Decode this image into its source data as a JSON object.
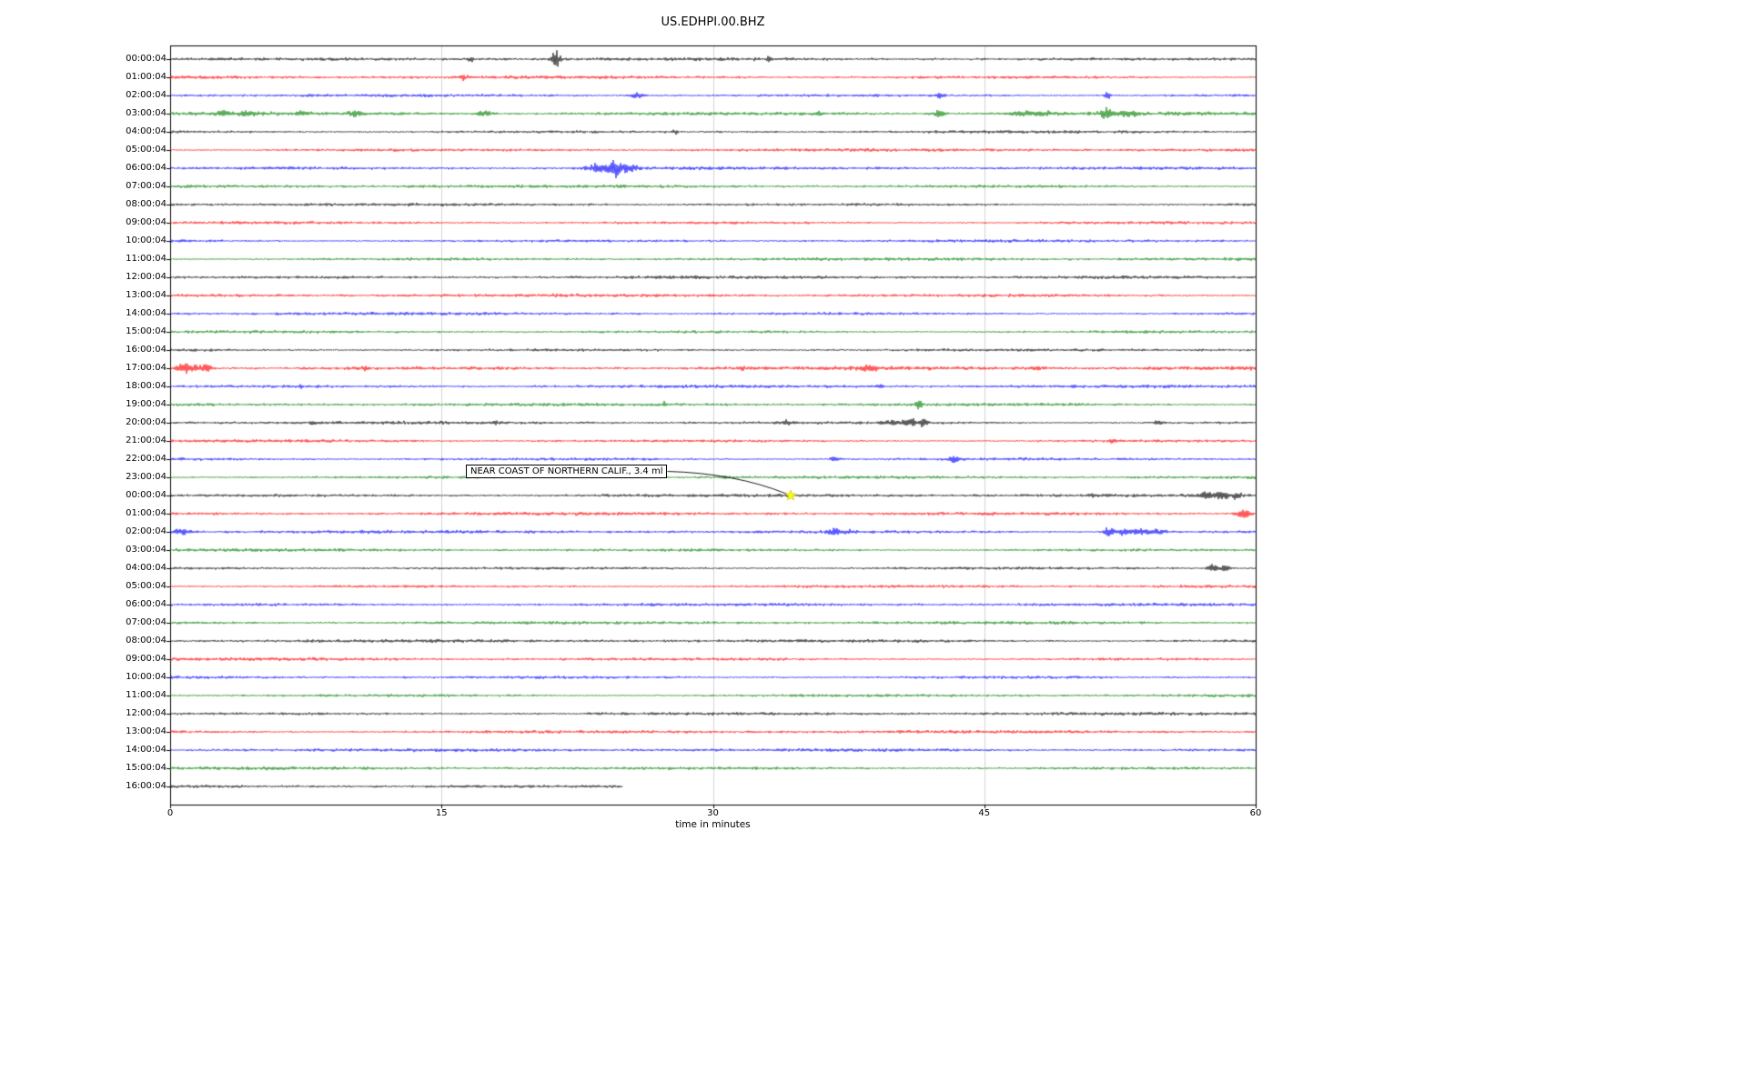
{
  "title": "US.EDHPI.00.BHZ",
  "chart_data": {
    "type": "line",
    "subtype": "helicorder-dayplot",
    "station_id": "US.EDHPI.00.BHZ",
    "xlabel": "time in minutes",
    "x_ticks": [
      0,
      15,
      30,
      45,
      60
    ],
    "x_range": [
      0,
      60
    ],
    "grid_minutes": [
      15,
      30,
      45
    ],
    "grid_on": true,
    "trace_colors_cycle": [
      "#000000",
      "#ff0000",
      "#0000ff",
      "#008000"
    ],
    "rows": [
      {
        "label": "00:00:04",
        "color": "#000000",
        "events": [
          {
            "t": 16.6,
            "a": 3,
            "w": 0.15
          },
          {
            "t": 21.3,
            "a": 11,
            "w": 0.18
          },
          {
            "t": 33.1,
            "a": 2.2,
            "w": 0.12
          }
        ]
      },
      {
        "label": "01:00:04",
        "color": "#ff0000",
        "events": [
          {
            "t": 16.2,
            "a": 3.5,
            "w": 0.2
          }
        ]
      },
      {
        "label": "02:00:04",
        "color": "#0000ff",
        "events": [
          {
            "t": 25.8,
            "a": 3.5,
            "w": 0.25
          },
          {
            "t": 42.6,
            "a": 4.5,
            "w": 0.15
          },
          {
            "t": 51.8,
            "a": 5.5,
            "w": 0.12
          }
        ]
      },
      {
        "label": "03:00:04",
        "color": "#008000",
        "noise": 1.5,
        "events": [
          {
            "t": 2.9,
            "a": 4,
            "w": 0.2
          },
          {
            "t": 4.2,
            "a": 2.5,
            "w": 0.3
          },
          {
            "t": 7.1,
            "a": 2.5,
            "w": 0.25
          },
          {
            "t": 10.2,
            "a": 3.5,
            "w": 0.2
          },
          {
            "t": 17.4,
            "a": 3,
            "w": 0.3
          },
          {
            "t": 35.9,
            "a": 2.2,
            "w": 0.2
          },
          {
            "t": 42.5,
            "a": 5,
            "w": 0.2
          },
          {
            "t": 47.2,
            "a": 3.5,
            "w": 0.5
          },
          {
            "t": 48.3,
            "a": 3,
            "w": 0.3
          },
          {
            "t": 51.8,
            "a": 6.5,
            "w": 0.25
          },
          {
            "t": 52.9,
            "a": 3.5,
            "w": 0.4
          }
        ]
      },
      {
        "label": "04:00:04",
        "color": "#000000",
        "events": [
          {
            "t": 27.9,
            "a": 2.5,
            "w": 0.1
          }
        ]
      },
      {
        "label": "05:00:04",
        "color": "#ff0000",
        "events": []
      },
      {
        "label": "06:00:04",
        "color": "#0000ff",
        "events": [
          {
            "t": 23.6,
            "a": 5,
            "w": 0.4
          },
          {
            "t": 24.6,
            "a": 9,
            "w": 0.3
          },
          {
            "t": 25.2,
            "a": 4,
            "w": 0.5
          }
        ]
      },
      {
        "label": "07:00:04",
        "color": "#008000",
        "events": []
      },
      {
        "label": "08:00:04",
        "color": "#000000",
        "events": []
      },
      {
        "label": "09:00:04",
        "color": "#ff0000",
        "events": []
      },
      {
        "label": "10:00:04",
        "color": "#0000ff",
        "events": []
      },
      {
        "label": "11:00:04",
        "color": "#008000",
        "events": []
      },
      {
        "label": "12:00:04",
        "color": "#000000",
        "events": []
      },
      {
        "label": "13:00:04",
        "color": "#ff0000",
        "events": []
      },
      {
        "label": "14:00:04",
        "color": "#0000ff",
        "events": []
      },
      {
        "label": "15:00:04",
        "color": "#008000",
        "events": []
      },
      {
        "label": "16:00:04",
        "color": "#000000",
        "events": []
      },
      {
        "label": "17:00:04",
        "color": "#ff0000",
        "noise": 1.4,
        "events": [
          {
            "t": 0.9,
            "a": 7,
            "w": 0.35
          },
          {
            "t": 1.9,
            "a": 5,
            "w": 0.3
          },
          {
            "t": 10.8,
            "a": 3.5,
            "w": 0.12
          },
          {
            "t": 31.6,
            "a": 2.5,
            "w": 0.15
          },
          {
            "t": 38.6,
            "a": 3,
            "w": 0.3
          },
          {
            "t": 47.9,
            "a": 2.2,
            "w": 0.2
          }
        ]
      },
      {
        "label": "18:00:04",
        "color": "#0000ff",
        "events": [
          {
            "t": 7.2,
            "a": 4.5,
            "w": 0.08
          },
          {
            "t": 39.2,
            "a": 2,
            "w": 0.15
          }
        ]
      },
      {
        "label": "19:00:04",
        "color": "#008000",
        "events": [
          {
            "t": 27.3,
            "a": 4.5,
            "w": 0.08
          },
          {
            "t": 41.4,
            "a": 6,
            "w": 0.12
          }
        ]
      },
      {
        "label": "20:00:04",
        "color": "#000000",
        "events": [
          {
            "t": 7.9,
            "a": 2,
            "w": 0.12
          },
          {
            "t": 18.0,
            "a": 1.8,
            "w": 0.12
          },
          {
            "t": 34.1,
            "a": 2.2,
            "w": 0.2
          },
          {
            "t": 39.8,
            "a": 3,
            "w": 0.3
          },
          {
            "t": 40.9,
            "a": 5,
            "w": 0.25
          },
          {
            "t": 41.6,
            "a": 6.5,
            "w": 0.15
          },
          {
            "t": 54.6,
            "a": 2.6,
            "w": 0.2
          }
        ]
      },
      {
        "label": "21:00:04",
        "color": "#ff0000",
        "events": [
          {
            "t": 52.1,
            "a": 2.2,
            "w": 0.2
          }
        ]
      },
      {
        "label": "22:00:04",
        "color": "#0000ff",
        "events": [
          {
            "t": 36.7,
            "a": 2.2,
            "w": 0.2
          },
          {
            "t": 43.4,
            "a": 4.5,
            "w": 0.2
          }
        ]
      },
      {
        "label": "23:00:04",
        "color": "#008000",
        "events": [
          {
            "t": 30.6,
            "a": 2.4,
            "w": 0.2
          }
        ]
      },
      {
        "label": "00:00:04",
        "color": "#000000",
        "events": [
          {
            "t": 51.1,
            "a": 2.2,
            "w": 0.15
          },
          {
            "t": 57.3,
            "a": 4.5,
            "w": 0.25
          },
          {
            "t": 58.1,
            "a": 5.5,
            "w": 0.25
          },
          {
            "t": 58.9,
            "a": 4,
            "w": 0.2
          }
        ]
      },
      {
        "label": "01:00:04",
        "color": "#ff0000",
        "events": [
          {
            "t": 59.3,
            "a": 5.5,
            "w": 0.3
          }
        ]
      },
      {
        "label": "02:00:04",
        "color": "#0000ff",
        "events": [
          {
            "t": 0.6,
            "a": 4.5,
            "w": 0.35
          },
          {
            "t": 36.7,
            "a": 4,
            "w": 0.25
          },
          {
            "t": 37.4,
            "a": 3,
            "w": 0.2
          },
          {
            "t": 51.9,
            "a": 8,
            "w": 0.2
          },
          {
            "t": 52.6,
            "a": 4,
            "w": 0.2
          },
          {
            "t": 53.6,
            "a": 4.5,
            "w": 0.4
          },
          {
            "t": 54.6,
            "a": 3.5,
            "w": 0.3
          }
        ]
      },
      {
        "label": "03:00:04",
        "color": "#008000",
        "events": []
      },
      {
        "label": "04:00:04",
        "color": "#000000",
        "events": [
          {
            "t": 57.6,
            "a": 5,
            "w": 0.2
          },
          {
            "t": 58.3,
            "a": 4,
            "w": 0.2
          }
        ]
      },
      {
        "label": "05:00:04",
        "color": "#ff0000",
        "events": []
      },
      {
        "label": "06:00:04",
        "color": "#0000ff",
        "events": []
      },
      {
        "label": "07:00:04",
        "color": "#008000",
        "events": []
      },
      {
        "label": "08:00:04",
        "color": "#000000",
        "events": []
      },
      {
        "label": "09:00:04",
        "color": "#ff0000",
        "events": []
      },
      {
        "label": "10:00:04",
        "color": "#0000ff",
        "events": []
      },
      {
        "label": "11:00:04",
        "color": "#008000",
        "events": []
      },
      {
        "label": "12:00:04",
        "color": "#000000",
        "events": []
      },
      {
        "label": "13:00:04",
        "color": "#ff0000",
        "events": []
      },
      {
        "label": "14:00:04",
        "color": "#0000ff",
        "events": []
      },
      {
        "label": "15:00:04",
        "color": "#008000",
        "events": []
      },
      {
        "label": "16:00:04",
        "color": "#000000",
        "end_minute": 25,
        "events": []
      }
    ],
    "annotation": {
      "text": "NEAR COAST OF NORTHERN CALIF., 3.4 ml",
      "marker_row": 24,
      "marker_minute": 34.3,
      "marker_color": "#ffff00",
      "marker_shape": "star"
    }
  }
}
